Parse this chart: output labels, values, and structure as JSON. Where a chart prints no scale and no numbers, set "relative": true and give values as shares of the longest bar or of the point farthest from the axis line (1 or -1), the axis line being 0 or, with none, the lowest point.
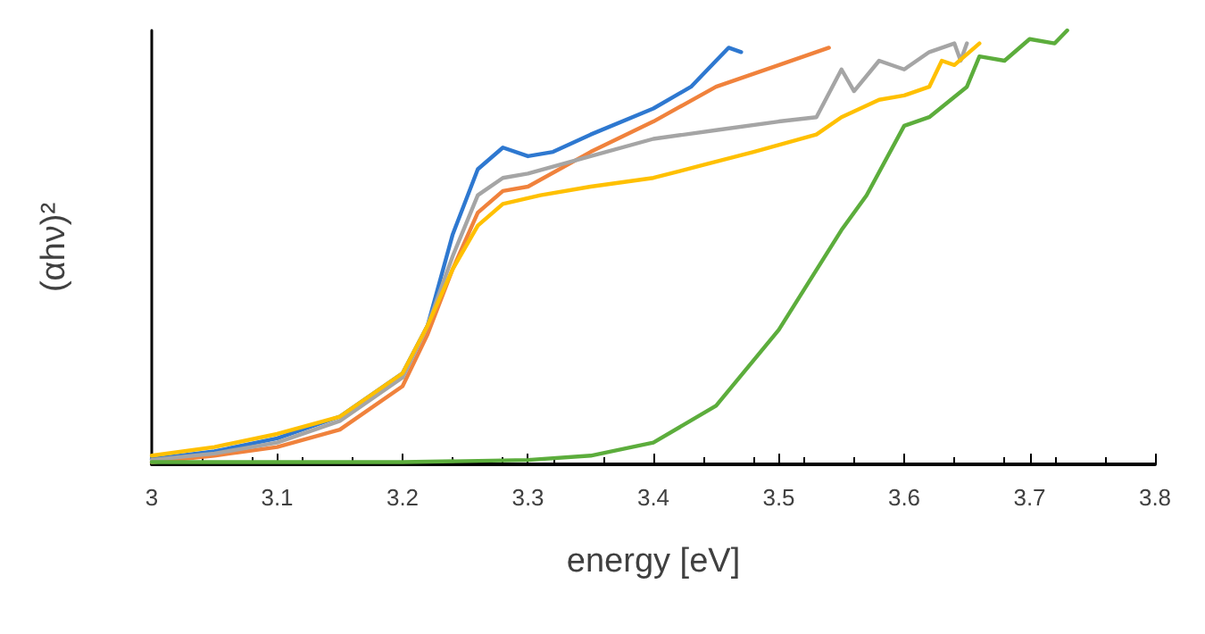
{
  "chart_data": {
    "type": "line",
    "relative": true,
    "xlabel": "energy [eV]",
    "ylabel": "(αhν)²",
    "xlim": [
      3,
      3.8
    ],
    "xticks": [
      3,
      3.1,
      3.2,
      3.3,
      3.4,
      3.5,
      3.6,
      3.7,
      3.8
    ],
    "grid": false,
    "marker": "none",
    "line_style": "solid",
    "series": [
      {
        "color": "#2e78d0",
        "x": [
          3.0,
          3.05,
          3.1,
          3.15,
          3.2,
          3.22,
          3.24,
          3.26,
          3.28,
          3.3,
          3.32,
          3.35,
          3.4,
          3.43,
          3.45,
          3.46,
          3.47
        ],
        "values": [
          0.012,
          0.03,
          0.06,
          0.11,
          0.21,
          0.32,
          0.53,
          0.68,
          0.73,
          0.71,
          0.72,
          0.76,
          0.82,
          0.87,
          0.93,
          0.96,
          0.95
        ]
      },
      {
        "color": "#f0823c",
        "x": [
          3.0,
          3.05,
          3.1,
          3.15,
          3.2,
          3.22,
          3.24,
          3.26,
          3.28,
          3.3,
          3.35,
          3.4,
          3.45,
          3.5,
          3.52,
          3.54
        ],
        "values": [
          0.005,
          0.02,
          0.04,
          0.08,
          0.18,
          0.3,
          0.45,
          0.58,
          0.63,
          0.64,
          0.72,
          0.79,
          0.87,
          0.92,
          0.94,
          0.96
        ]
      },
      {
        "color": "#a5a5a5",
        "x": [
          3.0,
          3.05,
          3.1,
          3.15,
          3.2,
          3.22,
          3.24,
          3.26,
          3.28,
          3.3,
          3.35,
          3.4,
          3.45,
          3.5,
          3.53,
          3.55,
          3.56,
          3.58,
          3.6,
          3.62,
          3.64,
          3.645,
          3.65
        ],
        "values": [
          0.01,
          0.025,
          0.05,
          0.1,
          0.2,
          0.32,
          0.48,
          0.62,
          0.66,
          0.67,
          0.71,
          0.75,
          0.77,
          0.79,
          0.8,
          0.91,
          0.86,
          0.93,
          0.91,
          0.95,
          0.97,
          0.93,
          0.97
        ]
      },
      {
        "color": "#ffc000",
        "x": [
          3.0,
          3.05,
          3.1,
          3.15,
          3.2,
          3.22,
          3.24,
          3.26,
          3.28,
          3.31,
          3.35,
          3.4,
          3.44,
          3.48,
          3.53,
          3.55,
          3.58,
          3.6,
          3.62,
          3.63,
          3.64,
          3.66
        ],
        "values": [
          0.02,
          0.04,
          0.07,
          0.11,
          0.21,
          0.32,
          0.45,
          0.55,
          0.6,
          0.62,
          0.64,
          0.66,
          0.69,
          0.72,
          0.76,
          0.8,
          0.84,
          0.85,
          0.87,
          0.93,
          0.92,
          0.97
        ]
      },
      {
        "color": "#5cad3c",
        "x": [
          3.0,
          3.1,
          3.2,
          3.3,
          3.35,
          3.4,
          3.45,
          3.5,
          3.55,
          3.57,
          3.6,
          3.62,
          3.65,
          3.66,
          3.68,
          3.7,
          3.72,
          3.73
        ],
        "values": [
          0.005,
          0.005,
          0.005,
          0.01,
          0.02,
          0.05,
          0.135,
          0.31,
          0.54,
          0.62,
          0.78,
          0.8,
          0.87,
          0.94,
          0.93,
          0.98,
          0.97,
          1
        ]
      }
    ]
  }
}
